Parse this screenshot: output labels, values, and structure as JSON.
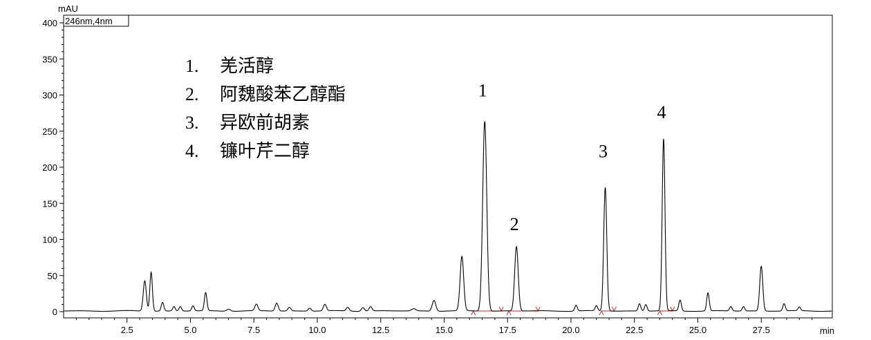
{
  "chart_data": {
    "type": "line",
    "ylabel": "mAU",
    "xlabel": "min",
    "trace_label": "246nm,4nm",
    "xlim": [
      0.0,
      30.3
    ],
    "ylim": [
      0,
      400
    ],
    "xticks": [
      2.5,
      5.0,
      7.5,
      10.0,
      12.5,
      15.0,
      17.5,
      20.0,
      22.5,
      25.0,
      27.5
    ],
    "xtick_labels": [
      "2.5",
      "5.0",
      "7.5",
      "10.0",
      "12.5",
      "15.0",
      "17.5",
      "20.0",
      "22.5",
      "25.0",
      "27.5"
    ],
    "yticks": [
      0,
      50,
      100,
      150,
      200,
      250,
      300,
      350,
      400
    ],
    "ytick_labels": [
      "0",
      "50",
      "100",
      "150",
      "200",
      "250",
      "300",
      "350",
      "400"
    ],
    "baseline": 1,
    "peaks": [
      {
        "rt": 3.2,
        "height": 42,
        "width": 0.06
      },
      {
        "rt": 3.45,
        "height": 54,
        "width": 0.05
      },
      {
        "rt": 3.9,
        "height": 12,
        "width": 0.05
      },
      {
        "rt": 4.35,
        "height": 6,
        "width": 0.05
      },
      {
        "rt": 4.6,
        "height": 6,
        "width": 0.05
      },
      {
        "rt": 5.1,
        "height": 7,
        "width": 0.05
      },
      {
        "rt": 5.6,
        "height": 25,
        "width": 0.05
      },
      {
        "rt": 6.5,
        "height": 3,
        "width": 0.08
      },
      {
        "rt": 7.6,
        "height": 9,
        "width": 0.06
      },
      {
        "rt": 8.4,
        "height": 11,
        "width": 0.06
      },
      {
        "rt": 8.9,
        "height": 5,
        "width": 0.06
      },
      {
        "rt": 9.7,
        "height": 4,
        "width": 0.06
      },
      {
        "rt": 10.3,
        "height": 9,
        "width": 0.06
      },
      {
        "rt": 11.2,
        "height": 5,
        "width": 0.06
      },
      {
        "rt": 11.8,
        "height": 5,
        "width": 0.06
      },
      {
        "rt": 12.1,
        "height": 6,
        "width": 0.06
      },
      {
        "rt": 13.8,
        "height": 3,
        "width": 0.08
      },
      {
        "rt": 14.6,
        "height": 15,
        "width": 0.07
      },
      {
        "rt": 15.7,
        "height": 75,
        "width": 0.07
      },
      {
        "rt": 16.6,
        "height": 263,
        "width": 0.08
      },
      {
        "rt": 17.85,
        "height": 89,
        "width": 0.07
      },
      {
        "rt": 20.2,
        "height": 8,
        "width": 0.05
      },
      {
        "rt": 21.0,
        "height": 7,
        "width": 0.05
      },
      {
        "rt": 21.35,
        "height": 171,
        "width": 0.06
      },
      {
        "rt": 22.7,
        "height": 10,
        "width": 0.05
      },
      {
        "rt": 22.95,
        "height": 9,
        "width": 0.05
      },
      {
        "rt": 23.65,
        "height": 238,
        "width": 0.055
      },
      {
        "rt": 24.3,
        "height": 15,
        "width": 0.05
      },
      {
        "rt": 25.4,
        "height": 25,
        "width": 0.05
      },
      {
        "rt": 26.3,
        "height": 6,
        "width": 0.05
      },
      {
        "rt": 26.8,
        "height": 6,
        "width": 0.05
      },
      {
        "rt": 27.5,
        "height": 62,
        "width": 0.06
      },
      {
        "rt": 28.4,
        "height": 10,
        "width": 0.05
      },
      {
        "rt": 29.0,
        "height": 5,
        "width": 0.05
      }
    ],
    "peak_annotations": [
      {
        "label": "1",
        "rt": 16.6,
        "y": 298
      },
      {
        "label": "2",
        "rt": 17.85,
        "y": 113
      },
      {
        "label": "3",
        "rt": 21.35,
        "y": 214
      },
      {
        "label": "4",
        "rt": 23.65,
        "y": 268
      }
    ],
    "integration_segments": [
      {
        "start": 16.15,
        "end": 17.25
      },
      {
        "start": 17.55,
        "end": 18.7
      },
      {
        "start": 21.2,
        "end": 21.7
      },
      {
        "start": 23.5,
        "end": 24.0
      }
    ],
    "legend": [
      {
        "num": "1.",
        "name": "羌活醇"
      },
      {
        "num": "2.",
        "name": "阿魏酸苯乙醇酯"
      },
      {
        "num": "3.",
        "name": "异欧前胡素"
      },
      {
        "num": "4.",
        "name": "镰叶芹二醇"
      }
    ],
    "legend_position": "top-left"
  }
}
